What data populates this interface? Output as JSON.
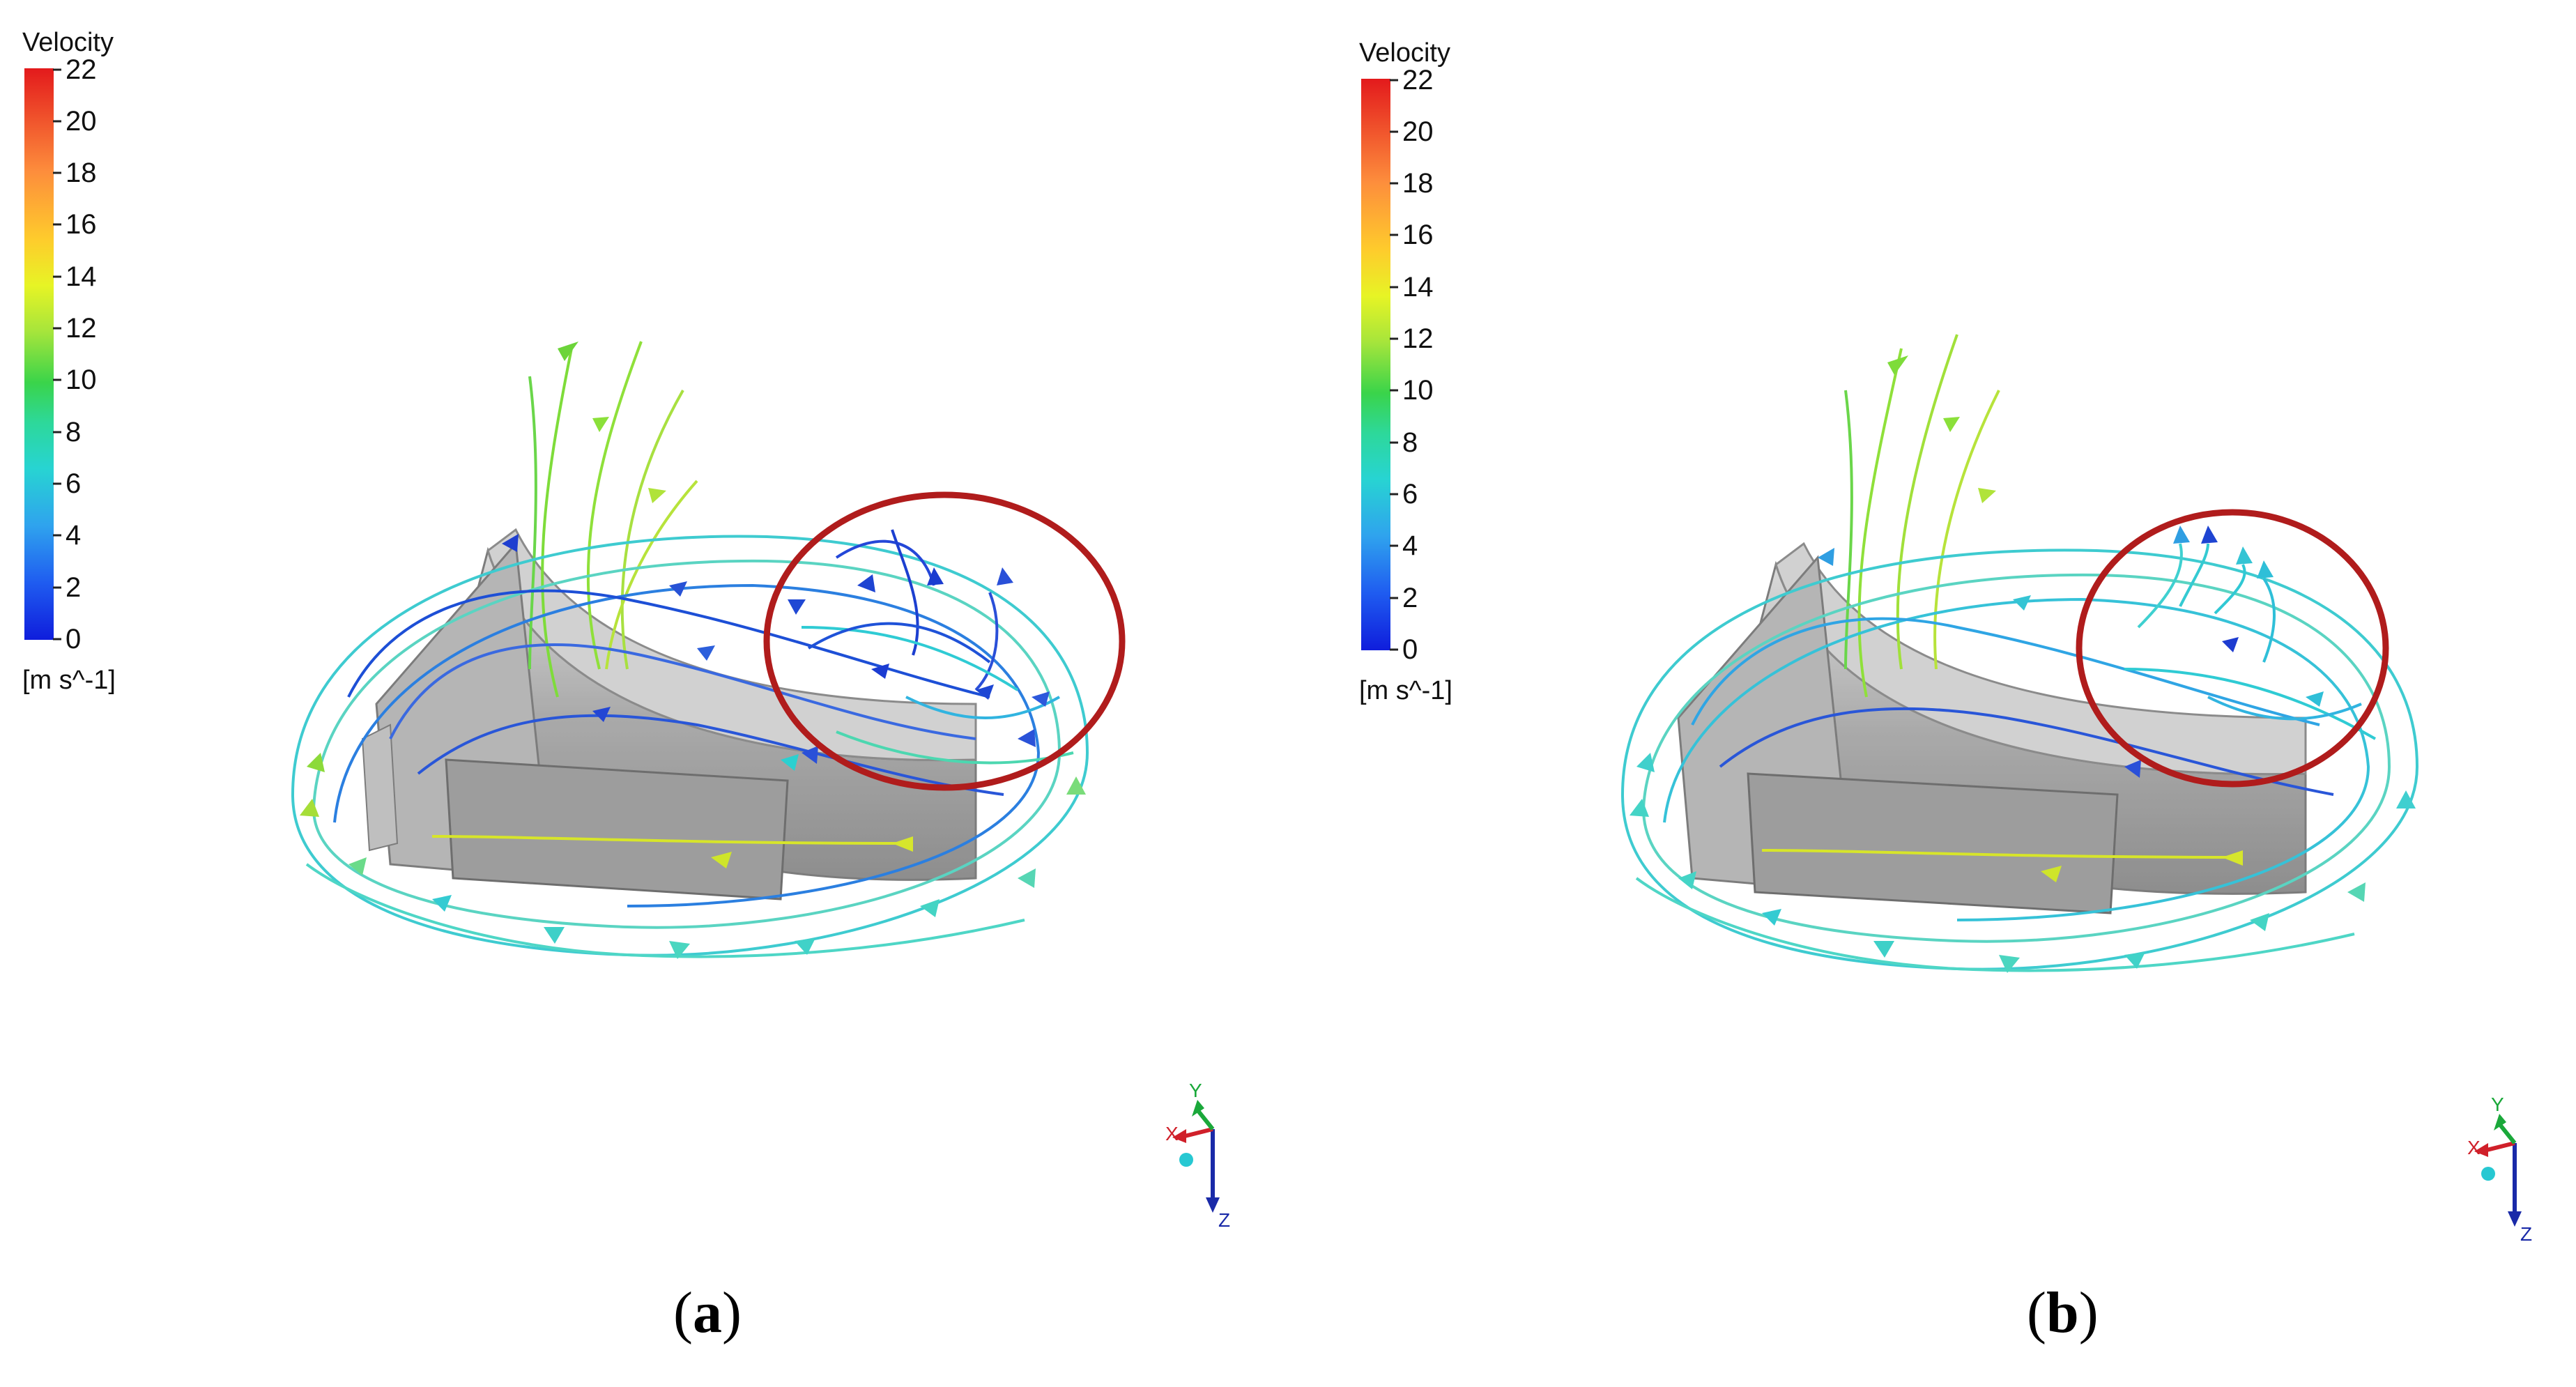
{
  "panels": [
    {
      "label_open": "(",
      "label_letter": "a",
      "label_close": ")",
      "legend": {
        "title": "Velocity",
        "ticks": [
          "22",
          "20",
          "18",
          "16",
          "14",
          "12",
          "10",
          "8",
          "6",
          "4",
          "2",
          "0"
        ],
        "unit": "[m s^-1]"
      }
    },
    {
      "label_open": "(",
      "label_letter": "b",
      "label_close": ")",
      "legend": {
        "title": "Velocity",
        "ticks": [
          "22",
          "20",
          "18",
          "16",
          "14",
          "12",
          "10",
          "8",
          "6",
          "4",
          "2",
          "0"
        ],
        "unit": "[m s^-1]"
      }
    }
  ],
  "axes_triad": {
    "x": "X",
    "y": "Y",
    "z": "Z"
  },
  "colors": {
    "highlight_circle": "#b01c1c",
    "geometry_gray": "#9a9a9a",
    "axis_x": "#d0202a",
    "axis_y": "#1aa83a",
    "axis_z": "#1a2aa8"
  }
}
